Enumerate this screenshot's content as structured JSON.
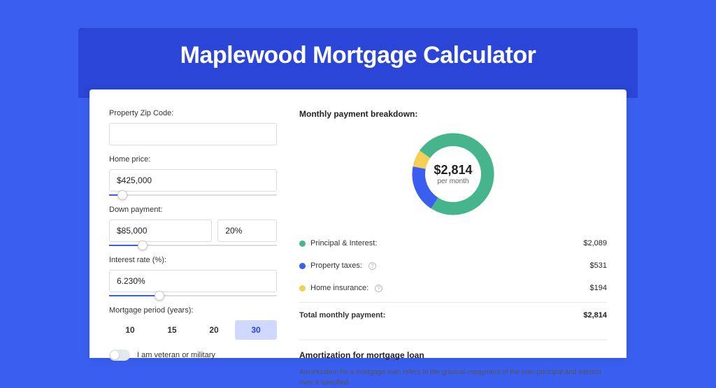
{
  "page": {
    "title": "Maplewood Mortgage Calculator",
    "bg_color": "#3a5ff0",
    "band_color": "#2b46d6",
    "card_bg": "#ffffff",
    "title_color": "#ffffff",
    "title_fontsize": 34
  },
  "form": {
    "zip": {
      "label": "Property Zip Code:",
      "value": ""
    },
    "home_price": {
      "label": "Home price:",
      "value": "$425,000",
      "slider_pct": 8
    },
    "down_payment": {
      "label": "Down payment:",
      "value_amount": "$85,000",
      "value_pct": "20%",
      "slider_pct": 20
    },
    "interest_rate": {
      "label": "Interest rate (%):",
      "value": "6.230%",
      "slider_pct": 30
    },
    "mortgage_period": {
      "label": "Mortgage period (years):",
      "options": [
        "10",
        "15",
        "20",
        "30"
      ],
      "active_index": 3,
      "active_bg": "#cfd9ff",
      "active_color": "#2b46d6"
    },
    "veteran": {
      "label": "I am veteran or military",
      "checked": false
    }
  },
  "breakdown": {
    "title": "Monthly payment breakdown:",
    "donut": {
      "center_amount": "$2,814",
      "center_sub": "per month",
      "thickness": 16,
      "slices": [
        {
          "name": "principal_interest",
          "value": 2089,
          "pct": 74.2,
          "color": "#46b48c"
        },
        {
          "name": "property_taxes",
          "value": 531,
          "pct": 18.9,
          "color": "#3a5ff0"
        },
        {
          "name": "home_insurance",
          "value": 194,
          "pct": 6.9,
          "color": "#f3cf55"
        }
      ]
    },
    "items": [
      {
        "label": "Principal & Interest:",
        "value": "$2,089",
        "dot_color": "#46b48c",
        "has_info": false
      },
      {
        "label": "Property taxes:",
        "value": "$531",
        "dot_color": "#3a5ff0",
        "has_info": true
      },
      {
        "label": "Home insurance:",
        "value": "$194",
        "dot_color": "#f3cf55",
        "has_info": true
      }
    ],
    "total": {
      "label": "Total monthly payment:",
      "value": "$2,814"
    }
  },
  "amortization": {
    "title": "Amortization for mortgage loan",
    "text": "Amortization for a mortgage loan refers to the gradual repayment of the loan principal and interest over a specified"
  }
}
